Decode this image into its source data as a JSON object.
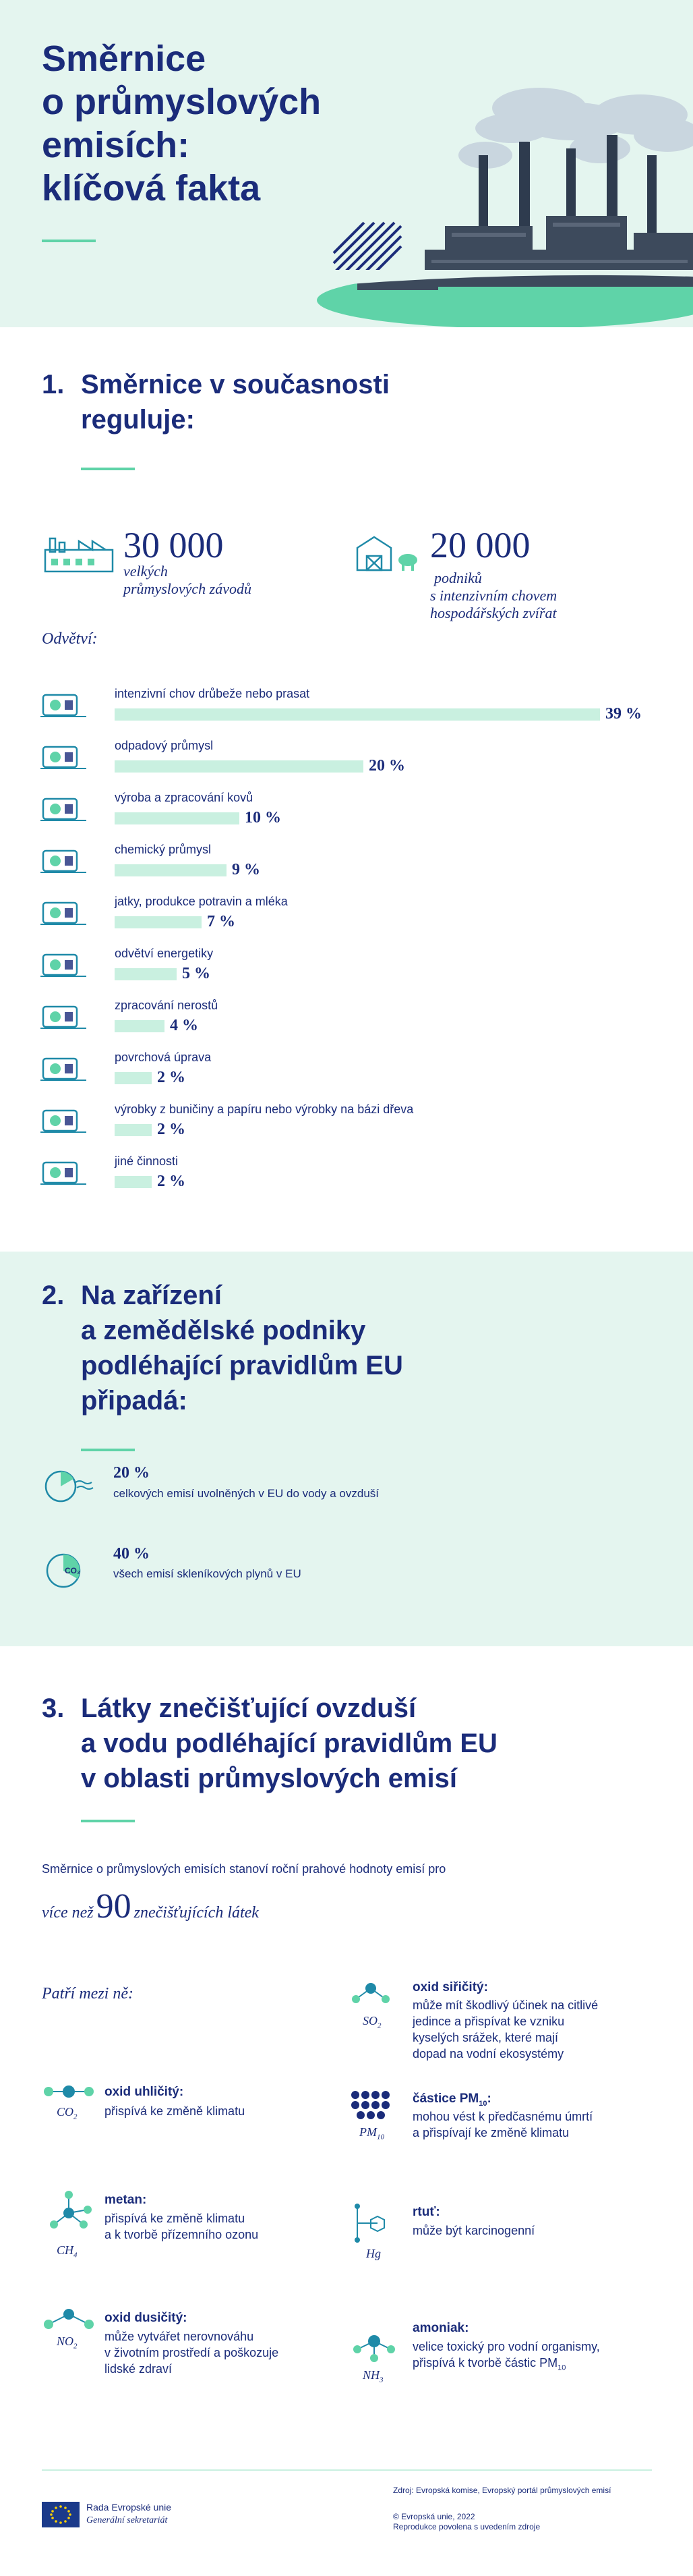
{
  "header": {
    "title_lines": [
      "Směrnice",
      "o průmyslových",
      "emisích:",
      "klíčová fakta"
    ]
  },
  "section1": {
    "number": "1.",
    "title_lines": [
      "Směrnice v současnosti",
      "reguluje:"
    ],
    "stats": [
      {
        "value": "30 000",
        "label_lines": [
          "velkých",
          "průmyslových závodů"
        ]
      },
      {
        "value": "20 000",
        "label_lines": [
          "podniků",
          "s intenzivním chovem",
          "hospodářských zvířat"
        ]
      }
    ],
    "sectors_heading": "Odvětví:",
    "sectors": [
      {
        "label": "intenzivní chov drůbeže nebo prasat",
        "percent": 39,
        "percent_label": "39 %",
        "icon": "poultry-pig-icon"
      },
      {
        "label": "odpadový průmysl",
        "percent": 20,
        "percent_label": "20 %",
        "icon": "waste-icon"
      },
      {
        "label": "výroba a zpracování kovů",
        "percent": 10,
        "percent_label": "10 %",
        "icon": "metal-icon"
      },
      {
        "label": "chemický průmysl",
        "percent": 9,
        "percent_label": "9 %",
        "icon": "chemical-icon"
      },
      {
        "label": "jatky, produkce potravin a mléka",
        "percent": 7,
        "percent_label": "7 %",
        "icon": "food-icon"
      },
      {
        "label": "odvětví energetiky",
        "percent": 5,
        "percent_label": "5 %",
        "icon": "energy-icon"
      },
      {
        "label": "zpracování nerostů",
        "percent": 4,
        "percent_label": "4 %",
        "icon": "minerals-icon"
      },
      {
        "label": "povrchová úprava",
        "percent": 2,
        "percent_label": "2 %",
        "icon": "surface-icon"
      },
      {
        "label": "výrobky z buničiny a papíru nebo výrobky na bázi dřeva",
        "percent": 2,
        "percent_label": "2 %",
        "icon": "wood-paper-icon"
      },
      {
        "label": "jiné činnosti",
        "percent": 2,
        "percent_label": "2 %",
        "icon": "other-icon"
      }
    ]
  },
  "section2": {
    "number": "2.",
    "title_lines": [
      "Na zařízení",
      "a zemědělské podniky",
      "podléhající pravidlům EU",
      "připadá:"
    ],
    "items": [
      {
        "percent": "20 %",
        "text": "celkových emisí uvolněných v EU do vody a ovzduší",
        "icon": "water-air-pie-icon"
      },
      {
        "percent": "40 %",
        "text": "všech emisí skleníkových plynů v EU",
        "icon": "co2-pie-icon",
        "icon_text": "CO₂"
      }
    ]
  },
  "section3": {
    "number": "3.",
    "title_lines": [
      "Látky znečišťující ovzduší",
      "a vodu podléhající pravidlům EU",
      "v oblasti průmyslových emisí"
    ],
    "intro": "Směrnice o průmyslových emisích stanoví roční prahové hodnoty emisí pro",
    "highlight_prefix": "více než",
    "highlight_number": "90",
    "highlight_suffix": "znečišťujících látek",
    "list_heading": "Patří mezi ně:",
    "pollutants": [
      {
        "formula": "SO",
        "formula_sub": "2",
        "name": "oxid siřičitý:",
        "desc_lines": [
          "může mít škodlivý účinek na citlivé",
          "jedince a přispívat ke vzniku",
          "kyselých srážek, které mají",
          "dopad na vodní ekosystémy"
        ]
      },
      {
        "formula": "CO",
        "formula_sub": "2",
        "name": "oxid uhličitý:",
        "desc_lines": [
          "přispívá ke změně klimatu"
        ]
      },
      {
        "formula": "PM",
        "formula_sub": "10",
        "name": "částice PM",
        "name_sub": "10",
        "name_end": ":",
        "desc_lines": [
          "mohou vést k předčasnému úmrtí",
          "a přispívají ke změně klimatu"
        ]
      },
      {
        "formula": "CH",
        "formula_sub": "4",
        "name": "metan:",
        "desc_lines": [
          "přispívá ke změně klimatu",
          "a k tvorbě přízemního ozonu"
        ]
      },
      {
        "formula": "Hg",
        "formula_sub": "",
        "name": "rtuť:",
        "desc_lines": [
          "může být karcinogenní"
        ]
      },
      {
        "formula": "NO",
        "formula_sub": "2",
        "name": "oxid dusičitý:",
        "desc_lines": [
          "může vytvářet nerovnováhu",
          "v životním prostředí a poškozuje",
          "lidské zdraví"
        ]
      },
      {
        "formula": "NH",
        "formula_sub": "3",
        "name": "amoniak:",
        "desc_lines": [
          "velice toxický pro vodní organismy,",
          "přispívá k tvorbě částic PM"
        ],
        "desc_sub": "10"
      }
    ]
  },
  "footer": {
    "org_name": "Rada Evropské unie",
    "org_sub": "Generální sekretariát",
    "source": "Zdroj: Evropská komise, Evropský portál průmyslových emisí",
    "copyright": "© Evropská unie, 2022",
    "reproduction": "Reprodukce povolena s uvedením zdroje"
  },
  "colors": {
    "navy": "#1b2c7a",
    "mint": "#e4f5ef",
    "green": "#5fd3a8",
    "bar": "#c9f0e0",
    "teal": "#1f8aa8"
  }
}
